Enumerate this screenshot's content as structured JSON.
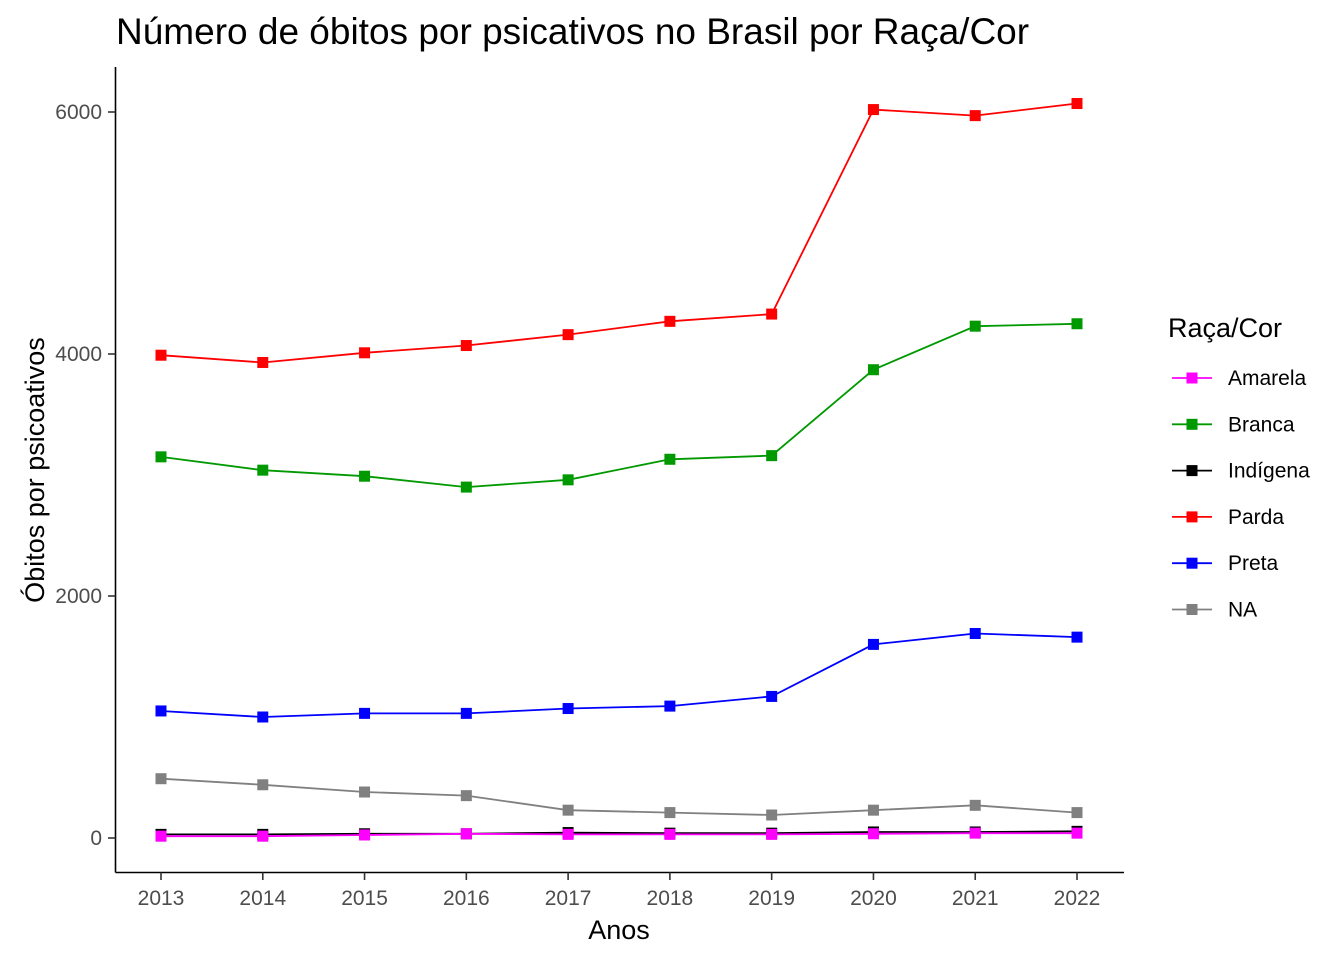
{
  "chart_data": {
    "type": "line",
    "title": "Número de óbitos por psicativos no Brasil por Raça/Cor",
    "xlabel": "Anos",
    "ylabel": "Óbitos por psicoativos",
    "x": [
      2013,
      2014,
      2015,
      2016,
      2017,
      2018,
      2019,
      2020,
      2021,
      2022
    ],
    "x_tick_labels": [
      "2013",
      "2014",
      "2015",
      "2016",
      "2017",
      "2018",
      "2019",
      "2020",
      "2021",
      "2022"
    ],
    "y_ticks": [
      0,
      2000,
      4000,
      6000
    ],
    "y_tick_labels": [
      "0",
      "2000",
      "4000",
      "6000"
    ],
    "ylim": [
      -280,
      6350
    ],
    "grid": false,
    "marker": "square",
    "legend": {
      "title": "Raça/Cor",
      "position": "right"
    },
    "series": [
      {
        "name": "Amarela",
        "color": "#ff00ff",
        "values": [
          15,
          15,
          25,
          35,
          30,
          30,
          30,
          35,
          40,
          40
        ]
      },
      {
        "name": "Branca",
        "color": "#009900",
        "values": [
          3150,
          3040,
          2990,
          2900,
          2960,
          3130,
          3160,
          3870,
          4230,
          4250
        ]
      },
      {
        "name": "Indígena",
        "color": "#000000",
        "values": [
          30,
          30,
          35,
          35,
          45,
          40,
          40,
          50,
          50,
          55
        ]
      },
      {
        "name": "Parda",
        "color": "#ff0000",
        "values": [
          3990,
          3930,
          4010,
          4070,
          4160,
          4270,
          4330,
          6020,
          5970,
          6070
        ]
      },
      {
        "name": "Preta",
        "color": "#0000ff",
        "values": [
          1050,
          1000,
          1030,
          1030,
          1070,
          1090,
          1170,
          1600,
          1690,
          1660
        ]
      },
      {
        "name": "NA",
        "color": "#808080",
        "values": [
          490,
          440,
          380,
          350,
          230,
          210,
          190,
          230,
          270,
          210
        ]
      }
    ]
  }
}
